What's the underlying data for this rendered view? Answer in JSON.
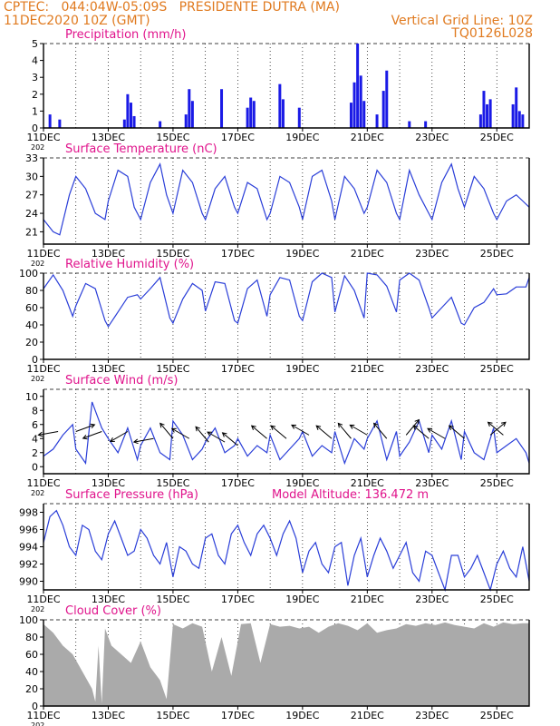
{
  "header": {
    "line1": "CPTEC:   044:04W-05:09S   PRESIDENTE DUTRA (MA)",
    "line2": "11DEC2020 10Z (GMT)",
    "grid_note": "Vertical Grid Line: 10Z",
    "code": "TQ0126L028"
  },
  "x_axis": {
    "start_day": 11,
    "end_day": 26,
    "tick_labels": [
      "11DEC",
      "13DEC",
      "15DEC",
      "17DEC",
      "19DEC",
      "21DEC",
      "23DEC",
      "25DEC"
    ],
    "year_stub": "202"
  },
  "colors": {
    "header": "#e07a1f",
    "title": "#e0148c",
    "line": "#2a3ed8",
    "bar": "#1a1ae6",
    "cloud": "#aaaaaa"
  },
  "chart_data": [
    {
      "type": "bar",
      "title": "Precipitation (mm/h)",
      "ylim": [
        0,
        5
      ],
      "yticks": [
        0,
        1,
        2,
        3,
        4,
        5
      ],
      "series": [
        {
          "x": [
            11.2,
            11.5,
            13.5,
            13.6,
            13.7,
            13.8,
            14.6,
            15.4,
            15.5,
            15.6,
            16.5,
            17.3,
            17.4,
            17.5,
            18.3,
            18.4,
            18.9,
            20.5,
            20.6,
            20.7,
            20.8,
            20.9,
            21.3,
            21.5,
            21.6,
            22.3,
            22.8,
            24.5,
            24.6,
            24.7,
            24.8,
            25.5,
            25.6,
            25.7,
            25.8
          ],
          "values": [
            0.8,
            0.5,
            0.5,
            2.0,
            1.5,
            0.7,
            0.4,
            0.8,
            2.3,
            1.6,
            2.3,
            1.2,
            1.8,
            1.6,
            2.6,
            1.7,
            1.2,
            1.5,
            2.7,
            5.0,
            3.1,
            1.6,
            0.8,
            2.2,
            3.4,
            0.4,
            0.4,
            0.8,
            2.2,
            1.4,
            1.7,
            1.4,
            2.4,
            1.0,
            0.8
          ]
        }
      ]
    },
    {
      "type": "line",
      "title": "Surface Temperature (nC)",
      "ylim": [
        19,
        33
      ],
      "yticks": [
        21,
        24,
        27,
        30,
        33
      ],
      "series": [
        {
          "x": [
            11.0,
            11.3,
            11.5,
            11.8,
            12.0,
            12.3,
            12.6,
            12.9,
            13.0,
            13.3,
            13.6,
            13.8,
            14.0,
            14.3,
            14.6,
            14.8,
            15.0,
            15.3,
            15.6,
            15.9,
            16.0,
            16.3,
            16.6,
            16.9,
            17.0,
            17.3,
            17.6,
            17.9,
            18.0,
            18.3,
            18.6,
            18.9,
            19.0,
            19.3,
            19.6,
            19.9,
            20.0,
            20.3,
            20.6,
            20.9,
            21.0,
            21.3,
            21.6,
            21.9,
            22.0,
            22.3,
            22.6,
            22.9,
            23.0,
            23.3,
            23.6,
            23.8,
            24.0,
            24.3,
            24.6,
            24.9,
            25.0,
            25.3,
            25.6,
            25.8,
            26.0
          ],
          "values": [
            23,
            21.0,
            20.5,
            27,
            30,
            28,
            24,
            23,
            26,
            31,
            30,
            25,
            23,
            29,
            32,
            27,
            24,
            31,
            29,
            24,
            23,
            28,
            30,
            25,
            24,
            29,
            28,
            23,
            24,
            30,
            29,
            25,
            23,
            30,
            31,
            26,
            23,
            30,
            28,
            24,
            25,
            31,
            29,
            24,
            23,
            31,
            27,
            24,
            23,
            29,
            32,
            28,
            25,
            30,
            28,
            24,
            23,
            26,
            27,
            26,
            25
          ]
        }
      ]
    },
    {
      "type": "line",
      "title": "Relative Humidity (%)",
      "ylim": [
        0,
        100
      ],
      "yticks": [
        0,
        20,
        40,
        60,
        80,
        100
      ],
      "series": [
        {
          "x": [
            11.0,
            11.3,
            11.6,
            11.9,
            12.0,
            12.3,
            12.6,
            12.9,
            13.0,
            13.3,
            13.6,
            13.9,
            14.0,
            14.3,
            14.6,
            14.9,
            15.0,
            15.3,
            15.6,
            15.9,
            16.0,
            16.3,
            16.6,
            16.9,
            17.0,
            17.3,
            17.6,
            17.9,
            18.0,
            18.3,
            18.6,
            18.9,
            19.0,
            19.3,
            19.6,
            19.9,
            20.0,
            20.3,
            20.6,
            20.9,
            21.0,
            21.3,
            21.6,
            21.9,
            22.0,
            22.3,
            22.6,
            22.9,
            23.0,
            23.3,
            23.6,
            23.9,
            24.0,
            24.3,
            24.6,
            24.9,
            25.0,
            25.3,
            25.6,
            25.9,
            26.0
          ],
          "values": [
            82,
            98,
            80,
            50,
            62,
            88,
            82,
            45,
            38,
            55,
            72,
            75,
            70,
            82,
            95,
            48,
            42,
            70,
            88,
            80,
            56,
            90,
            88,
            45,
            42,
            82,
            92,
            50,
            75,
            95,
            92,
            50,
            45,
            90,
            100,
            95,
            55,
            97,
            80,
            48,
            100,
            98,
            85,
            55,
            92,
            100,
            92,
            60,
            48,
            60,
            72,
            42,
            40,
            60,
            66,
            82,
            75,
            76,
            84,
            84,
            95
          ]
        }
      ]
    },
    {
      "type": "line",
      "title": "Surface Wind (m/s)",
      "ylim": [
        -1,
        11
      ],
      "yticks": [
        0,
        2,
        4,
        6,
        8,
        10
      ],
      "series": [
        {
          "x": [
            11.0,
            11.3,
            11.6,
            11.9,
            12.0,
            12.3,
            12.5,
            12.8,
            13.0,
            13.3,
            13.6,
            13.9,
            14.0,
            14.3,
            14.6,
            14.9,
            15.0,
            15.3,
            15.6,
            15.9,
            16.0,
            16.3,
            16.6,
            16.9,
            17.0,
            17.3,
            17.6,
            17.9,
            18.0,
            18.3,
            18.6,
            18.9,
            19.0,
            19.3,
            19.6,
            19.9,
            20.0,
            20.3,
            20.6,
            20.9,
            21.0,
            21.3,
            21.6,
            21.9,
            22.0,
            22.3,
            22.6,
            22.9,
            23.0,
            23.3,
            23.6,
            23.9,
            24.0,
            24.3,
            24.6,
            24.9,
            25.0,
            25.3,
            25.6,
            25.9,
            26.0
          ],
          "values": [
            1.5,
            2.5,
            4.5,
            6.0,
            2.5,
            0.5,
            9.2,
            5.5,
            4.0,
            2.0,
            5.5,
            1.0,
            3.0,
            5.5,
            2.0,
            1.0,
            6.5,
            4.5,
            1.0,
            2.5,
            3.5,
            5.5,
            2.0,
            3.0,
            4.0,
            1.5,
            3.0,
            2.0,
            4.5,
            1.0,
            2.5,
            4.0,
            5.0,
            1.5,
            3.0,
            2.0,
            5.0,
            0.5,
            4.0,
            2.5,
            4.0,
            6.5,
            1.0,
            5.0,
            1.5,
            3.5,
            6.5,
            2.0,
            4.5,
            2.5,
            6.5,
            1.0,
            5.0,
            2.0,
            1.0,
            5.5,
            2.0,
            3.0,
            4.0,
            2.0,
            0.5
          ]
        }
      ],
      "wind_arrows": [
        {
          "x": 11.45,
          "speed": 5.0,
          "to_deg": 190
        },
        {
          "x": 12.0,
          "speed": 5.0,
          "to_deg": 20
        },
        {
          "x": 12.8,
          "speed": 5.0,
          "to_deg": 200
        },
        {
          "x": 13.6,
          "speed": 5.0,
          "to_deg": 210
        },
        {
          "x": 14.4,
          "speed": 4.0,
          "to_deg": 190
        },
        {
          "x": 15.0,
          "speed": 4.0,
          "to_deg": 130
        },
        {
          "x": 15.5,
          "speed": 4.0,
          "to_deg": 150
        },
        {
          "x": 16.1,
          "speed": 3.5,
          "to_deg": 130
        },
        {
          "x": 16.6,
          "speed": 3.5,
          "to_deg": 150
        },
        {
          "x": 17.0,
          "speed": 3.0,
          "to_deg": 140
        },
        {
          "x": 17.9,
          "speed": 4.0,
          "to_deg": 140
        },
        {
          "x": 18.5,
          "speed": 4.0,
          "to_deg": 140
        },
        {
          "x": 19.2,
          "speed": 4.5,
          "to_deg": 150
        },
        {
          "x": 19.9,
          "speed": 4.0,
          "to_deg": 140
        },
        {
          "x": 20.5,
          "speed": 4.0,
          "to_deg": 130
        },
        {
          "x": 21.0,
          "speed": 4.5,
          "to_deg": 150
        },
        {
          "x": 21.6,
          "speed": 4.0,
          "to_deg": 130
        },
        {
          "x": 22.2,
          "speed": 4.5,
          "to_deg": 50
        },
        {
          "x": 22.9,
          "speed": 4.0,
          "to_deg": 140
        },
        {
          "x": 23.4,
          "speed": 4.0,
          "to_deg": 150
        },
        {
          "x": 24.0,
          "speed": 4.0,
          "to_deg": 140
        },
        {
          "x": 24.8,
          "speed": 4.5,
          "to_deg": 40
        },
        {
          "x": 25.2,
          "speed": 4.5,
          "to_deg": 140
        }
      ]
    },
    {
      "type": "line",
      "title": "Surface Pressure (hPa)",
      "annotation": "Model Altitude: 136.472  m",
      "ylim": [
        989,
        999
      ],
      "yticks": [
        990,
        992,
        994,
        996,
        998
      ],
      "series": [
        {
          "x": [
            11.0,
            11.2,
            11.4,
            11.6,
            11.8,
            12.0,
            12.2,
            12.4,
            12.6,
            12.8,
            13.0,
            13.2,
            13.4,
            13.6,
            13.8,
            14.0,
            14.2,
            14.4,
            14.6,
            14.8,
            15.0,
            15.2,
            15.4,
            15.6,
            15.8,
            16.0,
            16.2,
            16.4,
            16.6,
            16.8,
            17.0,
            17.2,
            17.4,
            17.6,
            17.8,
            18.0,
            18.2,
            18.4,
            18.6,
            18.8,
            19.0,
            19.2,
            19.4,
            19.6,
            19.8,
            20.0,
            20.2,
            20.4,
            20.6,
            20.8,
            21.0,
            21.2,
            21.4,
            21.6,
            21.8,
            22.0,
            22.2,
            22.4,
            22.6,
            22.8,
            23.0,
            23.2,
            23.4,
            23.6,
            23.8,
            24.0,
            24.2,
            24.4,
            24.6,
            24.8,
            25.0,
            25.2,
            25.4,
            25.6,
            25.8,
            26.0
          ],
          "values": [
            994.5,
            997.5,
            998.2,
            996.5,
            994.0,
            993.0,
            996.5,
            996.0,
            993.5,
            992.5,
            995.5,
            997.0,
            995.0,
            993.0,
            993.5,
            996.0,
            995.0,
            993.0,
            992.0,
            994.5,
            990.5,
            994.0,
            993.5,
            992.0,
            991.5,
            995.0,
            995.5,
            993.0,
            992.0,
            995.5,
            996.5,
            994.5,
            993.0,
            995.5,
            996.5,
            995.0,
            993.0,
            995.5,
            997.0,
            995.0,
            991.0,
            993.5,
            994.5,
            992.0,
            991.0,
            994.0,
            994.5,
            989.5,
            993.0,
            995.0,
            990.5,
            993.0,
            995.0,
            993.5,
            991.5,
            993.0,
            994.5,
            991.0,
            990.0,
            993.5,
            993.0,
            991.0,
            989.0,
            993.0,
            993.0,
            990.5,
            991.5,
            993.0,
            991.0,
            989.0,
            992.0,
            993.5,
            991.5,
            990.5,
            994.0,
            990.0
          ]
        }
      ]
    },
    {
      "type": "area",
      "title": "Cloud Cover (%)",
      "ylim": [
        0,
        100
      ],
      "yticks": [
        0,
        20,
        40,
        60,
        80,
        100
      ],
      "series": [
        {
          "x": [
            11.0,
            11.3,
            11.6,
            11.9,
            12.2,
            12.5,
            12.6,
            12.7,
            12.8,
            12.9,
            13.1,
            13.4,
            13.7,
            14.0,
            14.3,
            14.6,
            14.8,
            15.0,
            15.3,
            15.6,
            15.9,
            16.2,
            16.5,
            16.8,
            17.1,
            17.4,
            17.7,
            18.0,
            18.3,
            18.6,
            18.9,
            19.2,
            19.5,
            19.8,
            20.1,
            20.4,
            20.7,
            21.0,
            21.3,
            21.6,
            21.9,
            22.2,
            22.5,
            22.8,
            23.1,
            23.4,
            23.7,
            24.0,
            24.3,
            24.6,
            24.9,
            25.2,
            25.5,
            25.8,
            26.0
          ],
          "values": [
            95,
            85,
            70,
            60,
            40,
            20,
            5,
            70,
            3,
            90,
            70,
            60,
            50,
            75,
            45,
            30,
            8,
            95,
            90,
            96,
            92,
            40,
            80,
            35,
            95,
            96,
            50,
            95,
            92,
            93,
            90,
            92,
            85,
            92,
            96,
            93,
            88,
            96,
            85,
            88,
            90,
            95,
            93,
            96,
            94,
            97,
            94,
            92,
            90,
            96,
            92,
            97,
            95,
            96,
            96
          ]
        }
      ]
    }
  ]
}
